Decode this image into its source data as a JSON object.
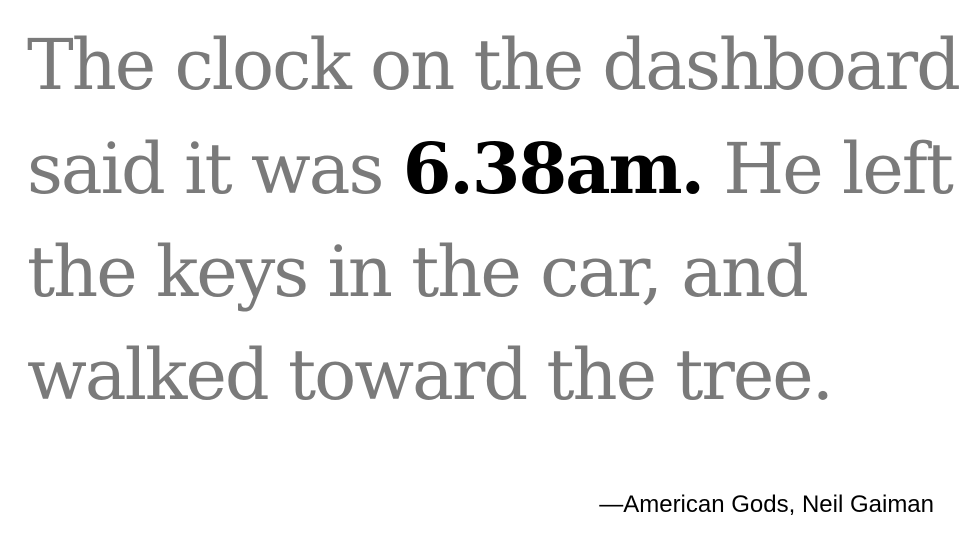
{
  "quote": {
    "line1": "The clock on the dashboard",
    "line2_before": "said it was ",
    "time": "6.38am.",
    "line2_after": " He left",
    "line3": "the keys in the car, and",
    "line4": "walked toward the tree."
  },
  "attribution": "—American Gods, Neil Gaiman",
  "colors": {
    "quote_text": "#7a7a7a",
    "highlight_text": "#000000",
    "background": "#ffffff"
  }
}
